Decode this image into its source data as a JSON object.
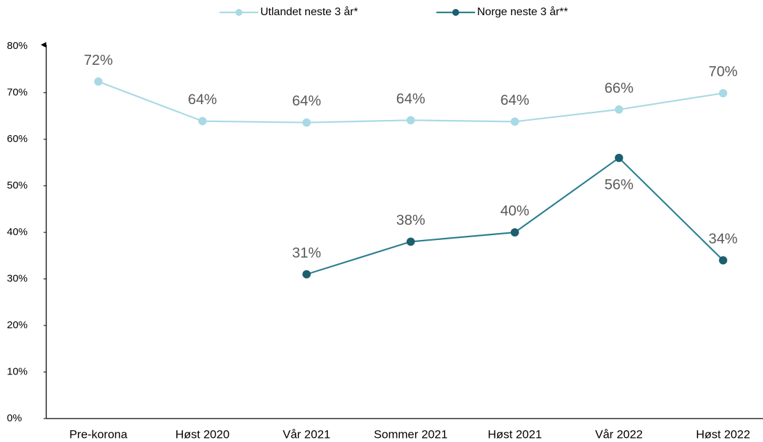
{
  "chart_data": {
    "type": "line",
    "categories": [
      "Pre-korona",
      "Høst 2020",
      "Vår 2021",
      "Sommer 2021",
      "Høst 2021",
      "Vår 2022",
      "Høst 2022"
    ],
    "series": [
      {
        "name": "Utlandet neste 3 år*",
        "color": "#a8d9e5",
        "values": [
          72.4,
          63.9,
          63.6,
          64.1,
          63.8,
          66.4,
          69.9
        ],
        "value_labels": [
          "72%",
          "64%",
          "64%",
          "64%",
          "64%",
          "66%",
          "70%"
        ]
      },
      {
        "name": "Norge neste 3 år**",
        "color": "#2a7f8f",
        "marker_color": "#1d5f6e",
        "values": [
          null,
          null,
          31,
          38,
          40,
          56,
          34
        ],
        "value_labels": [
          null,
          null,
          "31%",
          "38%",
          "40%",
          "56%",
          "34%"
        ]
      }
    ],
    "ylim": [
      0,
      80
    ],
    "yticks": [
      {
        "value": 0,
        "label": "0%"
      },
      {
        "value": 10,
        "label": "10%"
      },
      {
        "value": 20,
        "label": "20%"
      },
      {
        "value": 30,
        "label": "30%"
      },
      {
        "value": 40,
        "label": "40%"
      },
      {
        "value": 50,
        "label": "50%"
      },
      {
        "value": 60,
        "label": "60%"
      },
      {
        "value": 70,
        "label": "70%"
      },
      {
        "value": 80,
        "label": "80%"
      }
    ],
    "legend": "top"
  }
}
